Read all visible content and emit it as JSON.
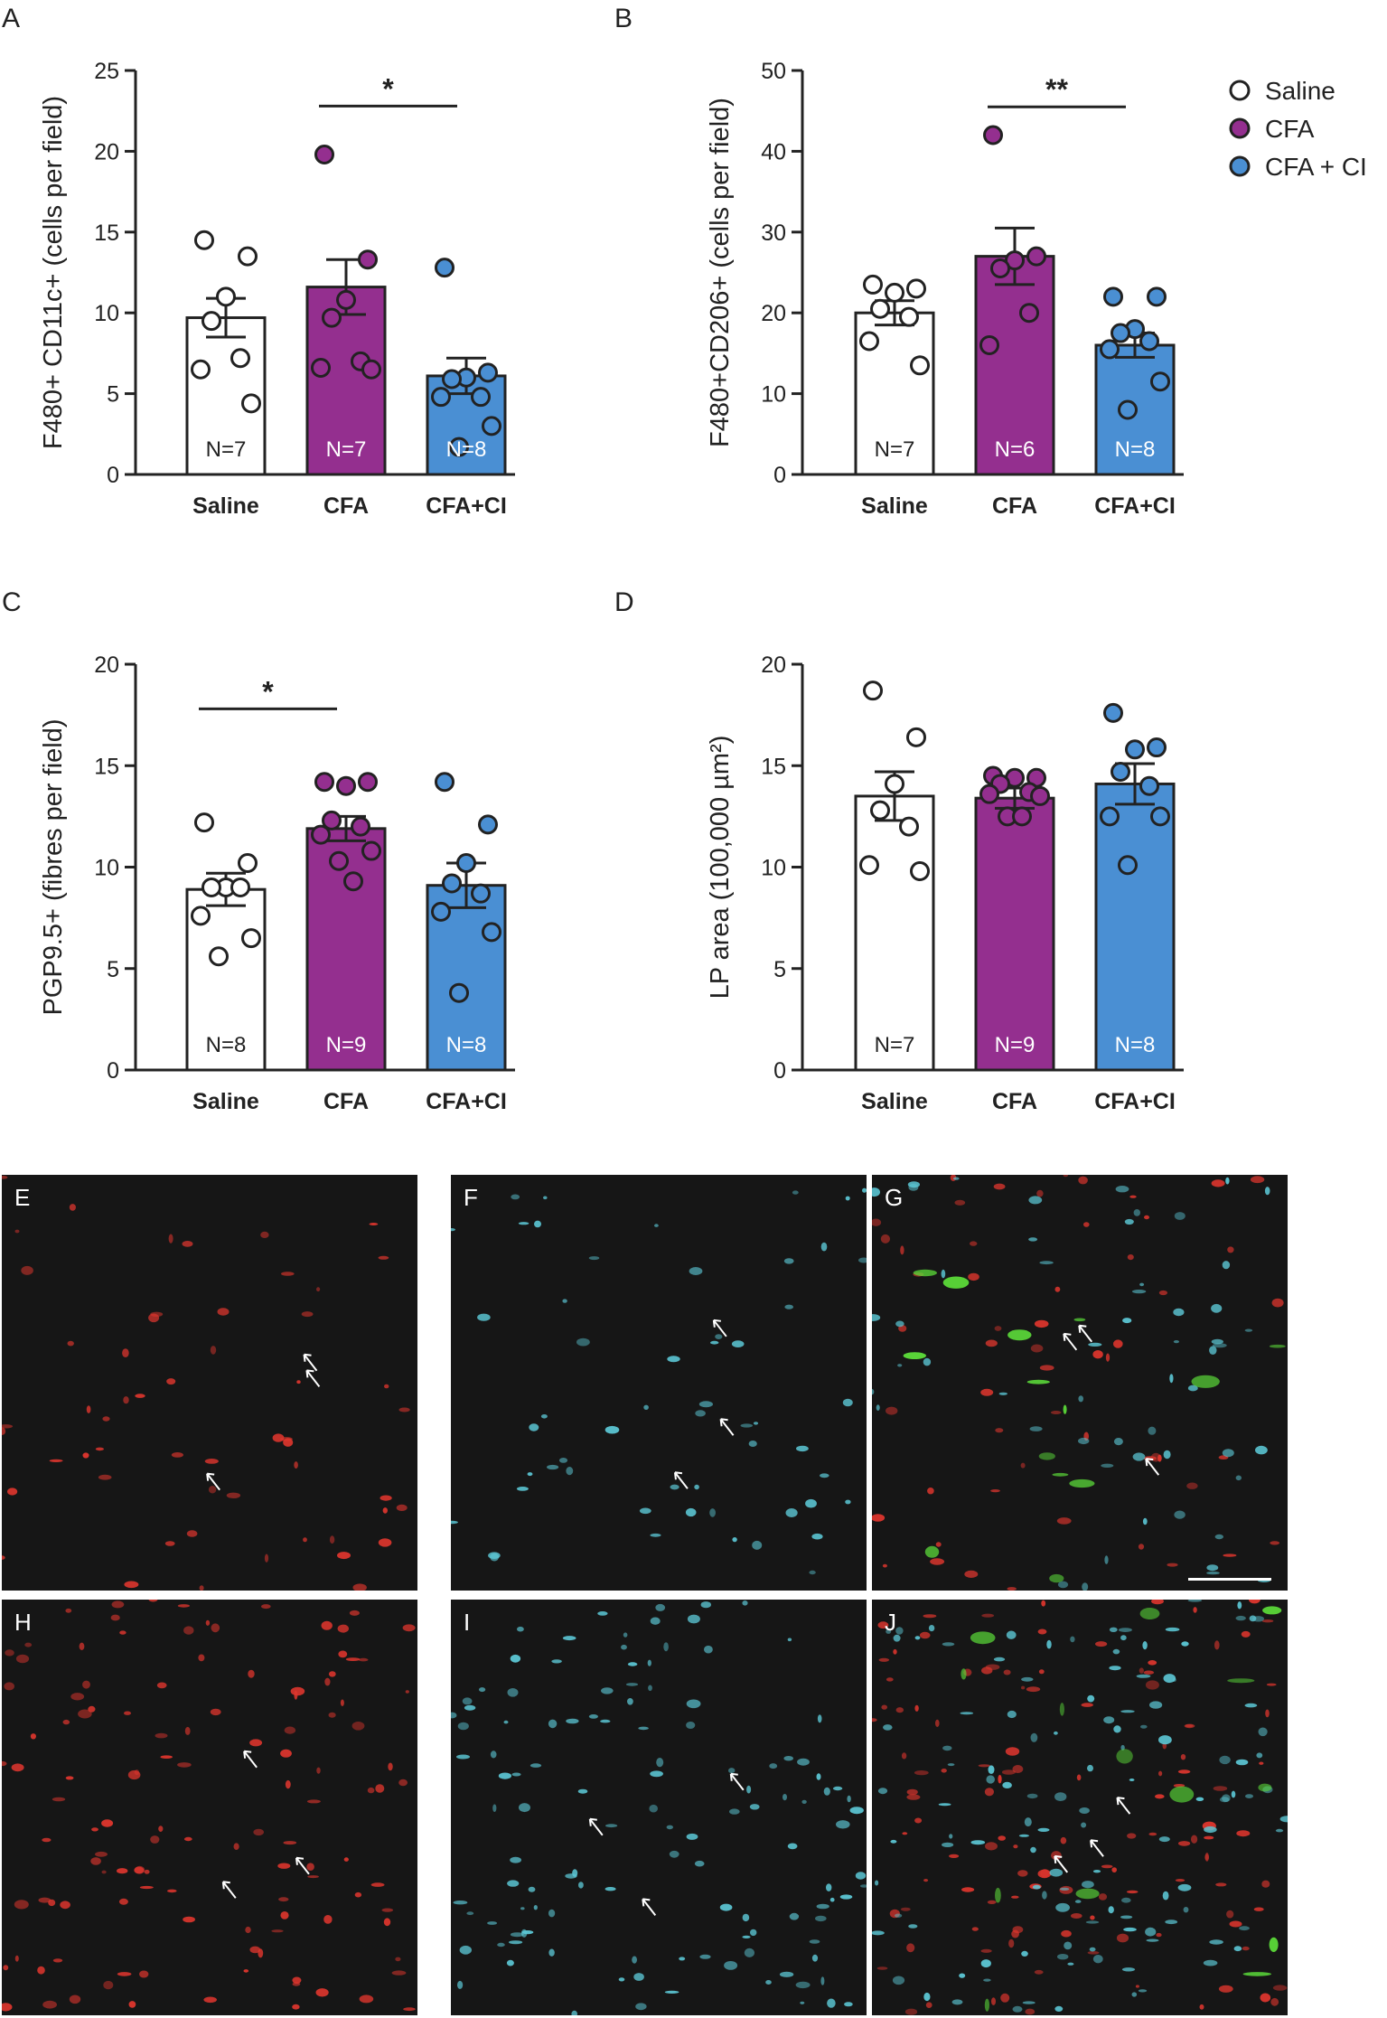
{
  "colors": {
    "saline_fill": "#ffffff",
    "cfa_fill": "#942f8f",
    "cfaci_fill": "#4a8fd3",
    "ink": "#222222",
    "red_stain": "#e0362e",
    "cyan_stain": "#5cc8d6",
    "green_stain": "#5de03a"
  },
  "legend": {
    "items": [
      {
        "label": "Saline",
        "color": "#ffffff"
      },
      {
        "label": "CFA",
        "color": "#942f8f"
      },
      {
        "label": "CFA + CI",
        "color": "#4a8fd3"
      }
    ]
  },
  "chart_data": [
    {
      "panel": "A",
      "type": "bar",
      "ylabel": "F480+ CD11c+ (cells per field)",
      "ylim": [
        0,
        25
      ],
      "yticks": [
        0,
        5,
        10,
        15,
        20,
        25
      ],
      "categories": [
        "Saline",
        "CFA",
        "CFA+CI"
      ],
      "values": [
        9.7,
        11.6,
        6.1
      ],
      "sem": [
        1.2,
        1.7,
        1.1
      ],
      "n_labels": [
        "N=7",
        "N=7",
        "N=8"
      ],
      "points": [
        [
          14.5,
          13.5,
          11.0,
          9.5,
          7.2,
          6.5,
          4.4
        ],
        [
          19.8,
          13.3,
          10.8,
          9.7,
          7.0,
          6.6,
          6.5
        ],
        [
          12.8,
          6.3,
          6.0,
          5.9,
          4.8,
          4.8,
          3.0,
          1.7
        ]
      ],
      "significance": [
        {
          "from": 1,
          "to": 2,
          "label": "*",
          "y": 22.8
        }
      ]
    },
    {
      "panel": "B",
      "type": "bar",
      "ylabel": "F480+CD206+ (cells per field)",
      "ylim": [
        0,
        50
      ],
      "yticks": [
        0,
        10,
        20,
        30,
        40,
        50
      ],
      "categories": [
        "Saline",
        "CFA",
        "CFA+CI"
      ],
      "values": [
        20.0,
        27.0,
        16.0
      ],
      "sem": [
        1.5,
        3.5,
        1.5
      ],
      "n_labels": [
        "N=7",
        "N=6",
        "N=8"
      ],
      "points": [
        [
          23.5,
          23.0,
          22.5,
          20.5,
          19.5,
          16.5,
          13.5
        ],
        [
          42.0,
          27.0,
          26.5,
          25.5,
          20.0,
          16.0
        ],
        [
          22.0,
          22.0,
          18.0,
          17.5,
          16.5,
          15.5,
          11.5,
          8.0
        ]
      ],
      "significance": [
        {
          "from": 1,
          "to": 2,
          "label": "**",
          "y": 45.5
        }
      ]
    },
    {
      "panel": "C",
      "type": "bar",
      "ylabel": "PGP9.5+ (fibres per field)",
      "ylim": [
        0,
        20
      ],
      "yticks": [
        0,
        5,
        10,
        15,
        20
      ],
      "categories": [
        "Saline",
        "CFA",
        "CFA+CI"
      ],
      "values": [
        8.9,
        11.9,
        9.1
      ],
      "sem": [
        0.8,
        0.6,
        1.1
      ],
      "n_labels": [
        "N=8",
        "N=9",
        "N=8"
      ],
      "points": [
        [
          12.2,
          10.2,
          9.0,
          9.0,
          9.0,
          7.6,
          6.5,
          5.6
        ],
        [
          14.2,
          14.2,
          14.0,
          12.3,
          12.0,
          11.6,
          10.8,
          10.3,
          9.3
        ],
        [
          14.2,
          12.1,
          10.2,
          9.2,
          8.7,
          7.8,
          6.8,
          3.8
        ]
      ],
      "significance": [
        {
          "from": 0,
          "to": 1,
          "label": "*",
          "y": 17.8
        }
      ]
    },
    {
      "panel": "D",
      "type": "bar",
      "ylabel": "LP area (100,000 µm²)",
      "ylim": [
        0,
        20
      ],
      "yticks": [
        0,
        5,
        10,
        15,
        20
      ],
      "categories": [
        "Saline",
        "CFA",
        "CFA+CI"
      ],
      "values": [
        13.5,
        13.4,
        14.1
      ],
      "sem": [
        1.2,
        0.5,
        1.0
      ],
      "n_labels": [
        "N=7",
        "N=9",
        "N=8"
      ],
      "points": [
        [
          18.7,
          16.4,
          14.1,
          12.8,
          12.0,
          10.1,
          9.8
        ],
        [
          14.5,
          14.4,
          14.4,
          14.1,
          13.7,
          13.6,
          13.5,
          12.5,
          12.5
        ],
        [
          17.6,
          15.9,
          15.8,
          14.7,
          14.0,
          12.5,
          12.5,
          10.1
        ]
      ],
      "significance": []
    }
  ],
  "micrographs": [
    {
      "label": "E",
      "stains": [
        "red"
      ],
      "scalebar": false
    },
    {
      "label": "F",
      "stains": [
        "cyan"
      ],
      "scalebar": false
    },
    {
      "label": "G",
      "stains": [
        "red",
        "cyan",
        "green"
      ],
      "scalebar": true
    },
    {
      "label": "H",
      "stains": [
        "red"
      ],
      "scalebar": false
    },
    {
      "label": "I",
      "stains": [
        "cyan"
      ],
      "scalebar": false
    },
    {
      "label": "J",
      "stains": [
        "red",
        "cyan",
        "green"
      ],
      "scalebar": false
    }
  ]
}
